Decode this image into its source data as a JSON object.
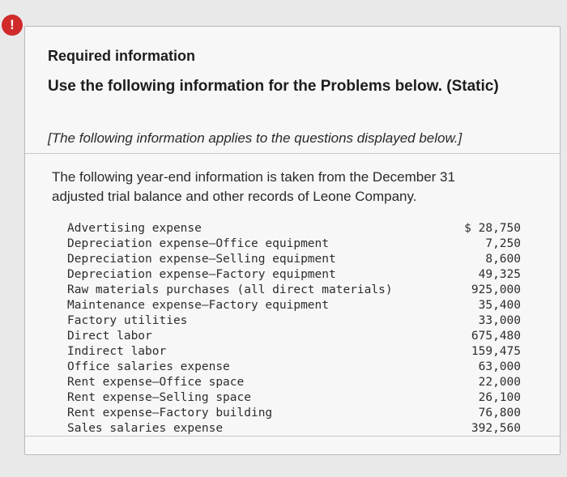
{
  "alert": {
    "icon": "!"
  },
  "card": {
    "required_title": "Required information",
    "heading": "Use the following information for the Problems below. (Static)",
    "note": "[The following information applies to the questions displayed below.]",
    "intro": "The following year-end information is taken from the December 31 adjusted trial balance and other records of Leone Company.",
    "rows": [
      {
        "label": "Advertising expense",
        "value": "$ 28,750"
      },
      {
        "label": "Depreciation expense—Office equipment",
        "value": "7,250"
      },
      {
        "label": "Depreciation expense—Selling equipment",
        "value": "8,600"
      },
      {
        "label": "Depreciation expense—Factory equipment",
        "value": "49,325"
      },
      {
        "label": "Raw materials purchases (all direct materials)",
        "value": "925,000"
      },
      {
        "label": "Maintenance expense—Factory equipment",
        "value": "35,400"
      },
      {
        "label": "Factory utilities",
        "value": "33,000"
      },
      {
        "label": "Direct labor",
        "value": "675,480"
      },
      {
        "label": "Indirect labor",
        "value": "159,475"
      },
      {
        "label": "Office salaries expense",
        "value": "63,000"
      },
      {
        "label": "Rent expense—Office space",
        "value": "22,000"
      },
      {
        "label": "Rent expense—Selling space",
        "value": "26,100"
      },
      {
        "label": "Rent expense—Factory building",
        "value": "76,800"
      },
      {
        "label": "Sales salaries expense",
        "value": "392,560"
      }
    ]
  }
}
